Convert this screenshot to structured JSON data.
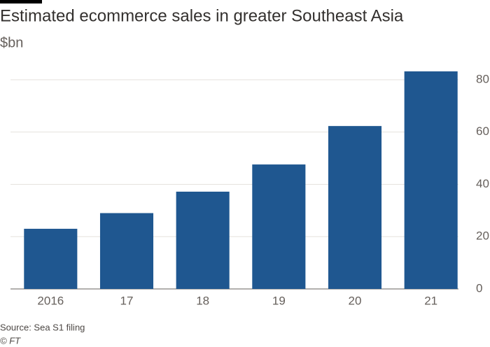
{
  "chart_data": {
    "type": "bar",
    "title": "Estimated ecommerce sales in greater Southeast Asia",
    "subtitle": "$bn",
    "categories": [
      "2016",
      "17",
      "18",
      "19",
      "20",
      "21"
    ],
    "values": [
      23,
      29,
      37.2,
      47.6,
      62.3,
      83.2
    ],
    "color": "#1f5790",
    "ylim": [
      0,
      85
    ],
    "yticks": [
      0,
      20,
      40,
      60,
      80
    ],
    "grid": true,
    "source": "Source: Sea S1 filing",
    "credit": "© FT"
  }
}
